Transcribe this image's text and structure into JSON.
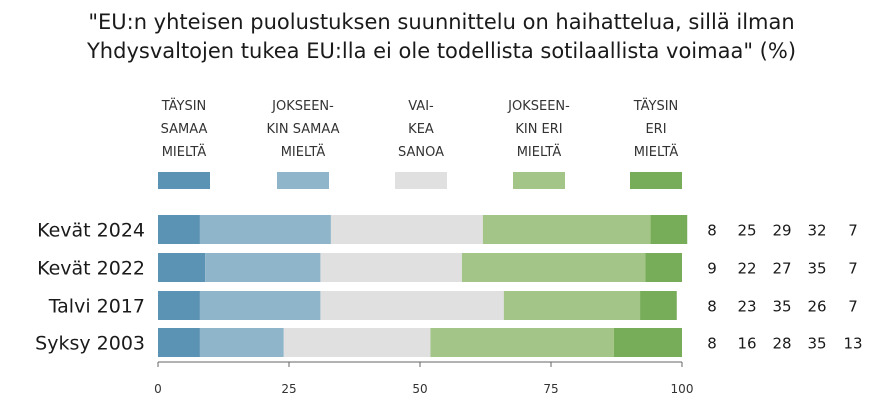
{
  "chart_data": {
    "type": "bar",
    "orientation": "horizontal",
    "stacked": true,
    "title": "\"EU:n yhteisen puolustuksen suunnittelu on haihattelua, sillä ilman Yhdysvaltojen tukea EU:lla ei ole todellista sotilaallista voimaa\" (%)",
    "title_lines": [
      "\"EU:n yhteisen puolustuksen suunnittelu on haihattelua, sillä ilman",
      "Yhdysvaltojen tukea EU:lla ei ole todellista sotilaallista voimaa\" (%)"
    ],
    "categories": [
      "Kevät 2024",
      "Kevät 2022",
      "Talvi 2017",
      "Syksy 2003"
    ],
    "series": [
      {
        "name": "Täysin samaa mieltä",
        "legend_lines": [
          "TÄYSIN",
          "SAMAA",
          "MIELTÄ"
        ],
        "color": "#5b93b4",
        "values": [
          8,
          9,
          8,
          8
        ]
      },
      {
        "name": "Jokseenkin samaa mieltä",
        "legend_lines": [
          "JOKSEEN-",
          "KIN SAMAA",
          "MIELTÄ"
        ],
        "color": "#8fb5cb",
        "values": [
          25,
          22,
          23,
          16
        ]
      },
      {
        "name": "Vaikea sanoa",
        "legend_lines": [
          "VAI-",
          "KEA",
          "SANOA"
        ],
        "color": "#e0e0e0",
        "values": [
          29,
          27,
          35,
          28
        ]
      },
      {
        "name": "Jokseenkin eri mieltä",
        "legend_lines": [
          "JOKSEEN-",
          "KIN ERI",
          "MIELTÄ"
        ],
        "color": "#a3c588",
        "values": [
          32,
          35,
          26,
          35
        ]
      },
      {
        "name": "Täysin eri mieltä",
        "legend_lines": [
          "TÄYSIN",
          "ERI",
          "MIELTÄ"
        ],
        "color": "#77ad58",
        "values": [
          7,
          7,
          7,
          13
        ]
      }
    ],
    "xlim": [
      0,
      100
    ],
    "xticks": [
      0,
      25,
      50,
      75,
      100
    ],
    "xlabel": "",
    "ylabel": "",
    "legend_position": "top",
    "grid": false
  }
}
